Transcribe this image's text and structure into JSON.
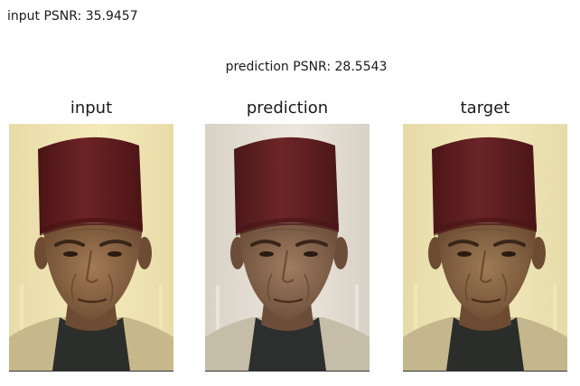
{
  "metrics": {
    "input_psnr": "input PSNR: 35.9457",
    "prediction_psnr": "prediction PSNR: 28.5543"
  },
  "panels": [
    {
      "title": "input",
      "colors": {
        "background": "#e8dca8",
        "background_light": "#f3e9b9",
        "hat": "#6c2326",
        "hat_dark": "#4c1416",
        "skin": "#a27a54",
        "skin_shadow": "#6e4c33",
        "shirt": "#c7b88c",
        "scarf": "#2b2e2a"
      }
    },
    {
      "title": "prediction",
      "colors": {
        "background": "#d8d1c6",
        "background_light": "#ece6dc",
        "hat": "#6e2628",
        "hat_dark": "#4a1719",
        "skin": "#9f7c5f",
        "skin_shadow": "#6b4d3a",
        "shirt": "#c6bda8",
        "scarf": "#2c2f2e"
      }
    },
    {
      "title": "target",
      "colors": {
        "background": "#e6dba8",
        "background_light": "#f2e8bb",
        "hat": "#6b2427",
        "hat_dark": "#4b1517",
        "skin": "#9e7a54",
        "skin_shadow": "#6c4b32",
        "shirt": "#c4b78e",
        "scarf": "#2a2d29"
      }
    }
  ]
}
